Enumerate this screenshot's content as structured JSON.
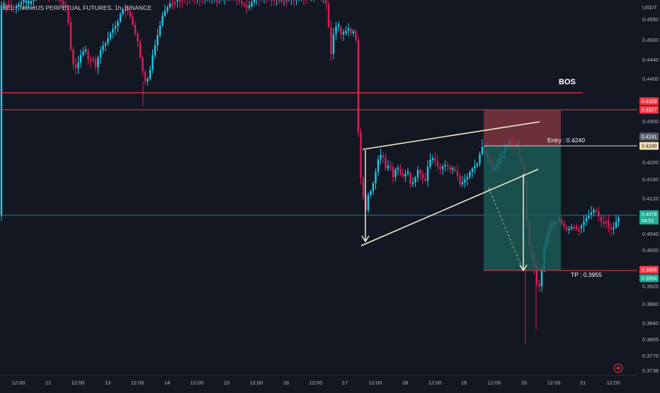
{
  "header": {
    "symbol_title": "BEL / TetherUS PERPETUAL FUTURES, 1h, BINANCE"
  },
  "price_axis": {
    "currency": "USDT",
    "ticks": [
      "0.4550",
      "0.4500",
      "0.4440",
      "0.4400",
      "0.4300",
      "0.4200",
      "0.4160",
      "0.4120",
      "0.4040",
      "0.4000",
      "0.3920",
      "0.3880",
      "0.3840",
      "0.3805",
      "0.3770",
      "0.3738"
    ]
  },
  "price_badges": [
    {
      "name": "resistance-upper",
      "value": "0.4328",
      "bg": "#f23645",
      "fg": "#ffffff"
    },
    {
      "name": "resistance-lower",
      "value": "0.4327",
      "bg": "#f23645",
      "fg": "#ffffff"
    },
    {
      "name": "prev-close",
      "value": "0.4241",
      "bg": "#5d606b",
      "fg": "#ffffff"
    },
    {
      "name": "entry",
      "value": "0.4240",
      "bg": "#f5deb3",
      "fg": "#131722"
    },
    {
      "name": "current-price",
      "value": "0.4078",
      "sub": "04:52",
      "bg": "#22ab94",
      "fg": "#ffffff"
    },
    {
      "name": "stop-target-red",
      "value": "0.3955",
      "bg": "#f23645",
      "fg": "#ffffff"
    },
    {
      "name": "take-profit",
      "value": "0.3954",
      "bg": "#22ab94",
      "fg": "#ffffff"
    }
  ],
  "time_axis": {
    "labels": [
      "12:00",
      "12",
      "12:00",
      "13",
      "12:00",
      "14",
      "12:00",
      "15",
      "12:00",
      "16",
      "12:00",
      "17",
      "12:00",
      "18",
      "12:00",
      "19",
      "12:00",
      "20",
      "12:00",
      "21",
      "12:00"
    ]
  },
  "annotations": {
    "bos": "BOS",
    "entry": "Entry : 0.4240",
    "tp": "TP : 0.3955"
  },
  "colors": {
    "background": "#131722",
    "up": "#22c8e8",
    "down": "#d81e5b",
    "grid": "#1e222d",
    "level_line": "#f23645",
    "wedge": "#f5eccb",
    "current_line": "#2a7a8a",
    "risk_zone": "#8b3a46",
    "reward_zone": "#1b5e58"
  },
  "icons": {
    "alert": "lightning-icon"
  }
}
